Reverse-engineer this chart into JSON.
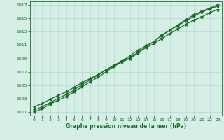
{
  "x": [
    0,
    1,
    2,
    3,
    4,
    5,
    6,
    7,
    8,
    9,
    10,
    11,
    12,
    13,
    14,
    15,
    16,
    17,
    18,
    19,
    20,
    21,
    22,
    23
  ],
  "line1": [
    1001.0,
    1001.5,
    1002.2,
    1002.8,
    1003.3,
    1004.0,
    1004.8,
    1005.5,
    1006.2,
    1007.0,
    1007.8,
    1008.5,
    1009.0,
    1009.8,
    1010.8,
    1011.5,
    1012.5,
    1013.2,
    1014.0,
    1014.8,
    1015.5,
    1016.0,
    1016.5,
    1017.0
  ],
  "line2": [
    1001.3,
    1001.8,
    1002.4,
    1003.1,
    1003.6,
    1004.3,
    1005.1,
    1005.8,
    1006.5,
    1007.3,
    1008.0,
    1008.6,
    1009.4,
    1010.2,
    1010.9,
    1011.5,
    1012.4,
    1013.2,
    1013.9,
    1014.6,
    1015.3,
    1015.9,
    1016.4,
    1016.8
  ],
  "line3": [
    1001.8,
    1002.3,
    1002.9,
    1003.5,
    1004.0,
    1004.7,
    1005.4,
    1006.0,
    1006.6,
    1007.3,
    1007.9,
    1008.5,
    1009.1,
    1009.9,
    1010.6,
    1011.2,
    1012.0,
    1012.7,
    1013.4,
    1014.1,
    1014.7,
    1015.2,
    1015.8,
    1016.3
  ],
  "bg_color": "#d5eee6",
  "grid_color": "#b8d8cc",
  "line_color": "#1a6b2a",
  "xlabel": "Graphe pression niveau de la mer (hPa)",
  "ylim": [
    1001,
    1017
  ],
  "xlim": [
    0,
    23
  ],
  "yticks": [
    1001,
    1003,
    1005,
    1007,
    1009,
    1011,
    1013,
    1015,
    1017
  ],
  "xticks": [
    0,
    1,
    2,
    3,
    4,
    5,
    6,
    7,
    8,
    9,
    10,
    11,
    12,
    13,
    14,
    15,
    16,
    17,
    18,
    19,
    20,
    21,
    22,
    23
  ],
  "marker": "*",
  "markersize": 3.5,
  "linewidth": 0.9
}
